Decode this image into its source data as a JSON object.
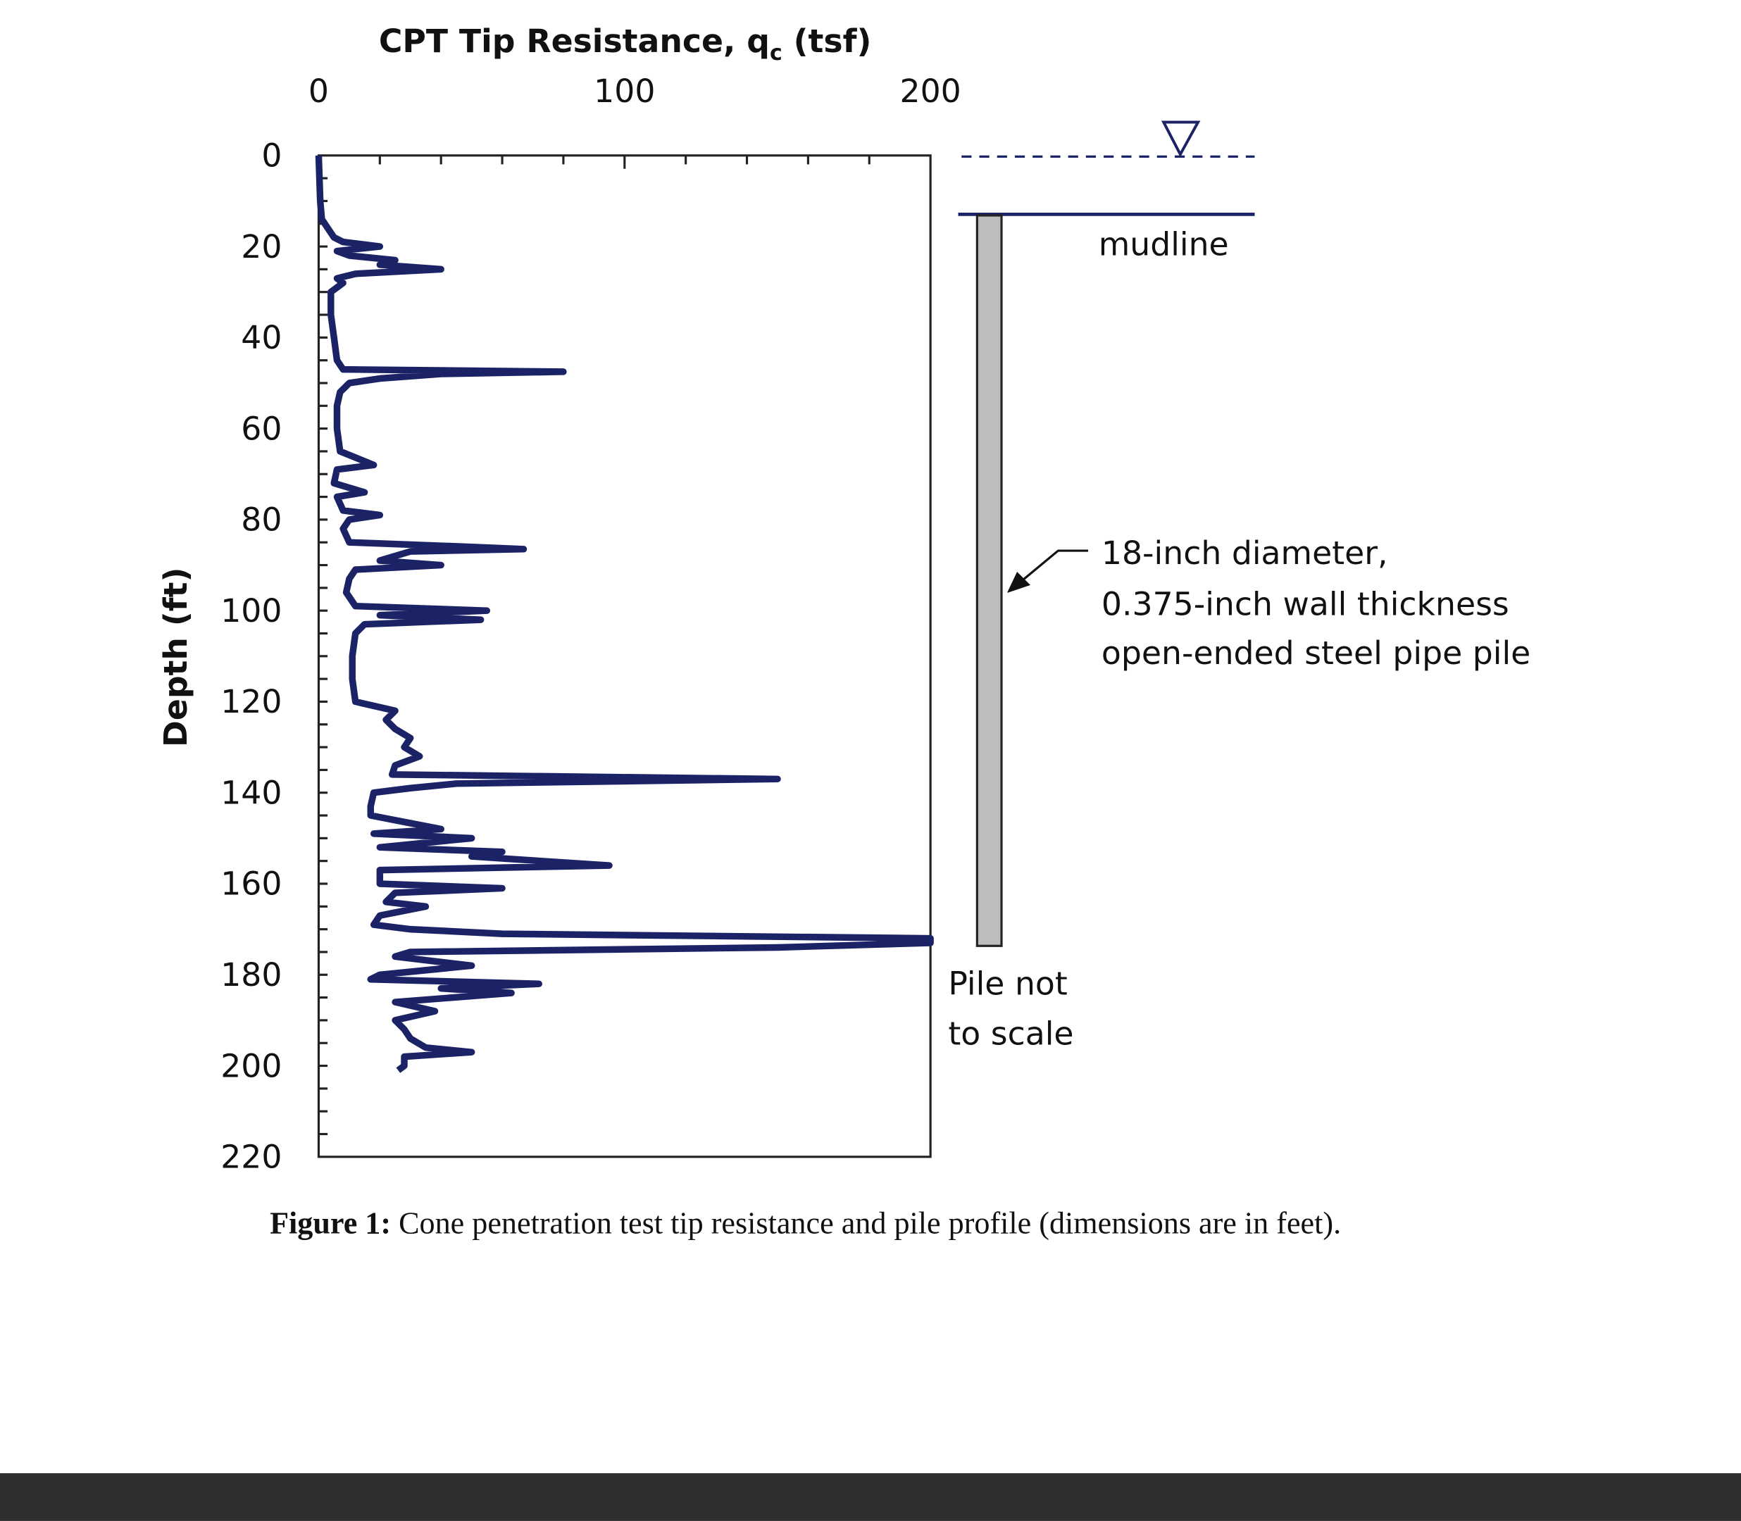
{
  "chart_data": {
    "type": "line",
    "title": "CPT Tip Resistance, qc (tsf)",
    "title_main": "CPT Tip Resistance, q",
    "title_sub": "c",
    "title_unit": " (tsf)",
    "xlabel": "CPT Tip Resistance, qc (tsf)",
    "ylabel": "Depth (ft)",
    "xlim": [
      0,
      200
    ],
    "ylim": [
      0,
      220
    ],
    "y_inverted": true,
    "x_axis_position": "top",
    "x_ticks": [
      "0",
      "100",
      "200"
    ],
    "y_ticks": [
      "0",
      "20",
      "40",
      "60",
      "80",
      "100",
      "120",
      "140",
      "160",
      "180",
      "200",
      "220"
    ],
    "grid": false,
    "series_color": "#1b2366",
    "series": [
      {
        "depth": [
          0,
          10,
          14,
          16,
          18,
          19,
          20,
          21,
          22,
          23,
          24,
          25,
          26,
          27,
          28,
          30,
          35,
          40,
          45,
          47,
          47.5,
          48,
          49,
          50,
          52,
          55,
          60,
          65,
          68,
          69,
          72,
          74,
          75,
          78,
          79,
          80,
          82,
          85,
          86,
          86.5,
          87,
          89,
          90,
          91,
          93,
          96,
          99,
          100,
          101,
          102,
          103,
          105,
          110,
          115,
          120,
          122,
          124,
          126,
          128,
          130,
          132,
          134,
          136,
          137,
          138,
          139,
          140,
          143,
          145,
          148,
          149,
          150,
          152,
          153,
          154,
          156,
          157,
          160,
          161,
          162,
          164,
          165,
          167,
          169,
          170,
          171,
          172,
          173,
          174,
          175,
          176,
          178,
          180,
          181,
          182,
          183,
          184,
          186,
          188,
          190,
          192,
          194,
          196,
          197,
          198,
          200,
          201
        ],
        "qc": [
          0,
          0.5,
          1,
          3,
          5,
          8,
          20,
          6,
          10,
          25,
          20,
          40,
          12,
          6,
          8,
          4,
          4,
          5,
          6,
          8,
          80,
          40,
          20,
          10,
          7,
          6,
          6,
          7,
          18,
          6,
          5,
          15,
          6,
          8,
          20,
          10,
          8,
          10,
          50,
          67,
          30,
          20,
          40,
          12,
          10,
          9,
          12,
          55,
          20,
          53,
          15,
          12,
          11,
          11,
          12,
          25,
          22,
          25,
          30,
          28,
          33,
          25,
          24,
          150,
          45,
          30,
          18,
          17,
          17,
          40,
          18,
          50,
          20,
          60,
          50,
          95,
          20,
          20,
          60,
          25,
          22,
          35,
          20,
          18,
          30,
          60,
          200,
          200,
          150,
          30,
          25,
          50,
          20,
          17,
          72,
          40,
          63,
          25,
          38,
          25,
          28,
          30,
          35,
          50,
          28,
          28,
          26
        ]
      }
    ]
  },
  "annotations": {
    "mudline": "mudline",
    "pile_description": [
      "18-inch diameter,",
      "0.375-inch wall thickness",
      "open-ended steel pipe pile"
    ],
    "pile_note": [
      "Pile not",
      "to scale"
    ],
    "water_symbol": "water-table-triangle-icon",
    "pile_color": "#bdbdbd",
    "water_line_color": "#1b2366"
  },
  "caption": {
    "label": "Figure 1:",
    "text": " Cone penetration test tip resistance and pile profile (dimensions are in feet)."
  }
}
